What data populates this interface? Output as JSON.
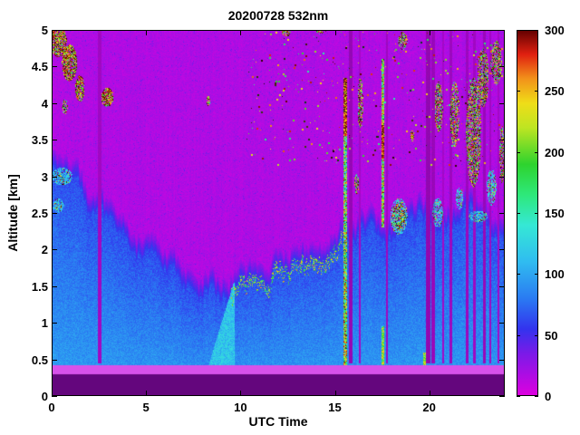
{
  "chart_data": {
    "type": "heatmap",
    "title": "20200728 532nm",
    "xlabel": "UTC Time",
    "ylabel": "Altitude [km]",
    "x_range": [
      0,
      24
    ],
    "y_range": [
      0,
      5
    ],
    "x_ticks": [
      0,
      5,
      10,
      15,
      20
    ],
    "y_ticks": [
      0,
      0.5,
      1,
      1.5,
      2,
      2.5,
      3,
      3.5,
      4,
      4.5,
      5
    ],
    "colorbar": {
      "min": 0,
      "max": 300,
      "ticks": [
        0,
        50,
        100,
        150,
        200,
        250,
        300
      ]
    },
    "colormap_stops": [
      [
        0,
        "#DF00DF"
      ],
      [
        35,
        "#7A1AE8"
      ],
      [
        55,
        "#3333EE"
      ],
      [
        80,
        "#2A7BF2"
      ],
      [
        110,
        "#30BCF0"
      ],
      [
        140,
        "#35E8D5"
      ],
      [
        165,
        "#2EE87A"
      ],
      [
        190,
        "#2ED32E"
      ],
      [
        220,
        "#BEE522"
      ],
      [
        240,
        "#EFDD18"
      ],
      [
        260,
        "#F2911A"
      ],
      [
        280,
        "#E02010"
      ],
      [
        300,
        "#600000"
      ]
    ],
    "background_value_range": [
      10,
      26
    ],
    "boundary_layer": {
      "hours": [
        0,
        1,
        2,
        3,
        4,
        5,
        6,
        7,
        8,
        9,
        10,
        11,
        12,
        13,
        14,
        15,
        16,
        17,
        18,
        19,
        20,
        21,
        22,
        23,
        24
      ],
      "top_km": [
        3.1,
        2.9,
        2.6,
        2.3,
        2.1,
        1.9,
        1.75,
        1.6,
        1.35,
        1.3,
        1.45,
        1.55,
        1.65,
        1.75,
        1.9,
        2.1,
        2.2,
        2.15,
        2.2,
        2.3,
        2.35,
        2.4,
        2.4,
        2.35,
        2.3
      ],
      "value_range": [
        50,
        90
      ]
    },
    "surface_layers": {
      "dark_band_top_km": 0.3,
      "bright_band_top_km": 0.42
    },
    "cyan_plume": {
      "t_start": 8.2,
      "t_end": 9.7,
      "base_km": 0.32,
      "top_km": 1.55
    },
    "cumulus_dots": {
      "t_range": [
        9.5,
        15.45
      ],
      "along_bl_top": true
    },
    "attenuated_columns": [
      [
        2.55,
        0.16,
        0.86
      ],
      [
        15.85,
        0.18,
        0.8
      ],
      [
        16.3,
        0.1,
        0.88
      ],
      [
        17.75,
        0.1,
        0.85
      ],
      [
        19.95,
        0.22,
        0.78
      ],
      [
        20.2,
        0.18,
        0.82
      ],
      [
        20.75,
        0.1,
        0.88
      ],
      [
        21.15,
        0.12,
        0.84
      ],
      [
        22.0,
        0.14,
        0.84
      ],
      [
        22.4,
        0.12,
        0.86
      ],
      [
        22.9,
        0.14,
        0.82
      ],
      [
        23.25,
        0.1,
        0.86
      ],
      [
        23.65,
        0.1,
        0.88
      ]
    ],
    "precip_columns": [
      {
        "t": 15.55,
        "w": 0.22,
        "segments": [
          [
            0.42,
            1.6,
            120,
            300,
            0.05
          ],
          [
            1.6,
            3.55,
            100,
            285,
            0.08
          ],
          [
            3.55,
            4.35,
            230,
            300,
            0.35
          ]
        ]
      },
      {
        "t": 17.55,
        "w": 0.14,
        "segments": [
          [
            0.32,
            0.95,
            140,
            260,
            0.0
          ],
          [
            2.3,
            3.25,
            110,
            290,
            0.1
          ],
          [
            3.25,
            3.7,
            240,
            300,
            0.3
          ],
          [
            3.7,
            4.6,
            120,
            280,
            0.12
          ]
        ]
      },
      {
        "t": 19.75,
        "w": 0.1,
        "segments": [
          [
            0.3,
            0.6,
            150,
            255,
            0.0
          ]
        ]
      }
    ],
    "cloud_features": [
      [
        0.35,
        4.85,
        0.45,
        0.22,
        "dark"
      ],
      [
        0.95,
        4.55,
        0.4,
        0.25,
        "dark"
      ],
      [
        1.5,
        4.2,
        0.25,
        0.18,
        "dark"
      ],
      [
        0.7,
        3.95,
        0.15,
        0.1,
        "mixed"
      ],
      [
        2.95,
        4.08,
        0.33,
        0.13,
        "dark"
      ],
      [
        0.55,
        3.0,
        0.55,
        0.12,
        "cyan"
      ],
      [
        0.35,
        2.6,
        0.3,
        0.1,
        "cyan"
      ],
      [
        8.3,
        4.02,
        0.1,
        0.08,
        "mixed"
      ],
      [
        12.4,
        4.97,
        0.25,
        0.06,
        "mixed"
      ],
      [
        14.2,
        4.99,
        0.2,
        0.05,
        "mixed"
      ],
      [
        16.15,
        2.9,
        0.12,
        0.15,
        "mixed"
      ],
      [
        16.35,
        4.0,
        0.15,
        0.35,
        "mixed"
      ],
      [
        18.4,
        2.45,
        0.45,
        0.25,
        "cyan"
      ],
      [
        18.4,
        2.45,
        0.35,
        0.18,
        "mixed"
      ],
      [
        18.6,
        4.85,
        0.25,
        0.12,
        "mixed"
      ],
      [
        19.1,
        3.55,
        0.1,
        0.08,
        "mixed"
      ],
      [
        20.45,
        2.5,
        0.28,
        0.2,
        "cyan"
      ],
      [
        20.5,
        3.95,
        0.22,
        0.35,
        "mixed"
      ],
      [
        21.35,
        3.85,
        0.25,
        0.45,
        "mixed"
      ],
      [
        21.6,
        2.7,
        0.2,
        0.15,
        "cyan"
      ],
      [
        22.35,
        3.6,
        0.4,
        0.75,
        "mixed"
      ],
      [
        22.6,
        2.45,
        0.5,
        0.08,
        "cyan"
      ],
      [
        22.85,
        4.35,
        0.3,
        0.4,
        "mixed"
      ],
      [
        23.3,
        2.85,
        0.25,
        0.25,
        "cyan"
      ],
      [
        23.55,
        4.55,
        0.3,
        0.3,
        "mixed"
      ],
      [
        23.85,
        3.3,
        0.12,
        0.4,
        "mixed"
      ]
    ],
    "speckle_region": {
      "t_range": [
        10.3,
        24
      ],
      "alt_range": [
        3.15,
        5.0
      ],
      "count": 380
    }
  }
}
